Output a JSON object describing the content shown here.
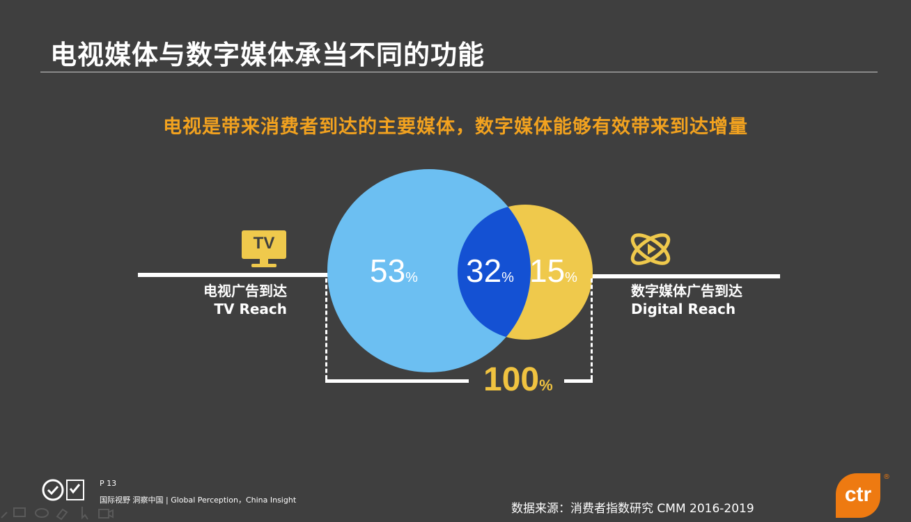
{
  "title": "电视媒体与数字媒体承当不同的功能",
  "subtitle": "电视是带来消费者到达的主要媒体，数字媒体能够有效带来到达增量",
  "icons": {
    "tv": "tv-icon",
    "digital": "digital-play-icon"
  },
  "tv_icon_text": "TV",
  "tv_label": {
    "cn": "电视广告到达",
    "en": "TV Reach"
  },
  "digital_label": {
    "cn": "数字媒体广告到达",
    "en": "Digital Reach"
  },
  "venn": {
    "tv_only": {
      "value": "53",
      "unit": "%"
    },
    "overlap": {
      "value": "32",
      "unit": "%"
    },
    "digital_only": {
      "value": "15",
      "unit": "%"
    },
    "total": {
      "value": "100",
      "unit": "%"
    },
    "colors": {
      "tv": "#6cbff2",
      "overlap": "#1451d3",
      "digital": "#efc94c"
    }
  },
  "footer": {
    "page": "P 13",
    "slogan": "国际视野  洞察中国 |  Global Perception，China Insight",
    "source": "数据来源：消费者指数研究 CMM  2016-2019",
    "brand": "ctr",
    "reg": "®"
  }
}
